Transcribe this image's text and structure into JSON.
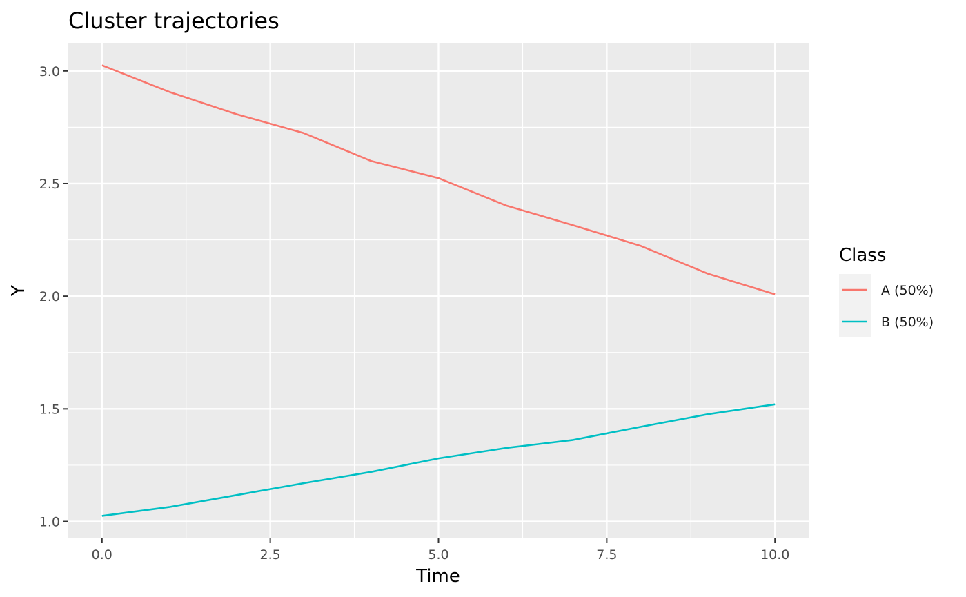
{
  "chart_data": {
    "type": "line",
    "title": "Cluster trajectories",
    "xlabel": "Time",
    "ylabel": "Y",
    "xlim": [
      -0.5,
      10.5
    ],
    "ylim": [
      0.925,
      3.125
    ],
    "x_ticks": [
      0,
      2.5,
      5,
      7.5,
      10
    ],
    "x_tick_labels": [
      "0.0",
      "2.5",
      "5.0",
      "7.5",
      "10.0"
    ],
    "y_ticks": [
      1.0,
      1.5,
      2.0,
      2.5,
      3.0
    ],
    "y_tick_labels": [
      "1.0",
      "1.5",
      "2.0",
      "2.5",
      "3.0"
    ],
    "grid": true,
    "legend": {
      "title": "Class",
      "position": "right"
    },
    "x": [
      0,
      1,
      2,
      3,
      4,
      5,
      6,
      7,
      8,
      9,
      10
    ],
    "series": [
      {
        "name": "A (50%)",
        "color": "#F8766D",
        "values": [
          3.025,
          2.907,
          2.808,
          2.724,
          2.6,
          2.524,
          2.403,
          2.315,
          2.224,
          2.1,
          2.008
        ]
      },
      {
        "name": "B (50%)",
        "color": "#00BFC4",
        "values": [
          1.025,
          1.064,
          1.117,
          1.17,
          1.22,
          1.28,
          1.326,
          1.362,
          1.42,
          1.476,
          1.52
        ]
      }
    ]
  }
}
